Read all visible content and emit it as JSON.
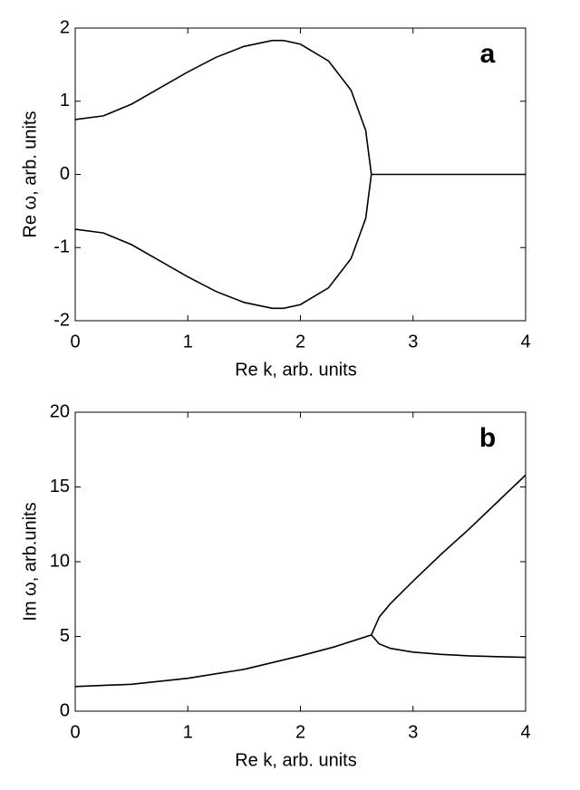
{
  "chart_data": [
    {
      "type": "line",
      "label": "a",
      "xlabel": "Re k, arb. units",
      "ylabel": "Re ω, arb. units",
      "xlim": [
        0,
        4
      ],
      "ylim": [
        -2,
        2
      ],
      "xticks": [
        0,
        1,
        2,
        3,
        4
      ],
      "yticks": [
        -2,
        -1,
        0,
        1,
        2
      ],
      "series": [
        {
          "color": "#000000",
          "x": [
            0,
            0.25,
            0.5,
            0.75,
            1.0,
            1.25,
            1.5,
            1.75,
            1.85,
            2.0,
            2.25,
            2.45,
            2.58,
            2.63
          ],
          "values": [
            0.75,
            0.8,
            0.96,
            1.18,
            1.4,
            1.6,
            1.75,
            1.83,
            1.83,
            1.78,
            1.55,
            1.15,
            0.6,
            0
          ]
        },
        {
          "color": "#000000",
          "x": [
            0,
            0.25,
            0.5,
            0.75,
            1.0,
            1.25,
            1.5,
            1.75,
            1.85,
            2.0,
            2.25,
            2.45,
            2.58,
            2.63
          ],
          "values": [
            -0.75,
            -0.8,
            -0.96,
            -1.18,
            -1.4,
            -1.6,
            -1.75,
            -1.83,
            -1.83,
            -1.78,
            -1.55,
            -1.15,
            -0.6,
            0
          ]
        },
        {
          "color": "#000000",
          "x": [
            2.63,
            4
          ],
          "values": [
            0,
            0
          ]
        }
      ]
    },
    {
      "type": "line",
      "label": "b",
      "xlabel": "Re k, arb. units",
      "ylabel": "Im ω, arb.units",
      "xlim": [
        0,
        4
      ],
      "ylim": [
        0,
        20
      ],
      "xticks": [
        0,
        1,
        2,
        3,
        4
      ],
      "yticks": [
        0,
        5,
        10,
        15,
        20
      ],
      "series": [
        {
          "color": "#000000",
          "x": [
            0,
            0.5,
            1.0,
            1.5,
            2.0,
            2.3,
            2.63
          ],
          "values": [
            1.65,
            1.8,
            2.2,
            2.8,
            3.7,
            4.3,
            5.1
          ]
        },
        {
          "color": "#000000",
          "x": [
            2.63,
            2.7,
            2.8,
            3.0,
            3.25,
            3.5,
            3.75,
            4.0
          ],
          "values": [
            5.1,
            6.3,
            7.2,
            8.7,
            10.5,
            12.2,
            14.0,
            15.8
          ]
        },
        {
          "color": "#000000",
          "x": [
            2.63,
            2.7,
            2.8,
            3.0,
            3.25,
            3.5,
            3.75,
            4.0
          ],
          "values": [
            5.1,
            4.5,
            4.2,
            3.95,
            3.8,
            3.7,
            3.65,
            3.6
          ]
        }
      ]
    }
  ]
}
